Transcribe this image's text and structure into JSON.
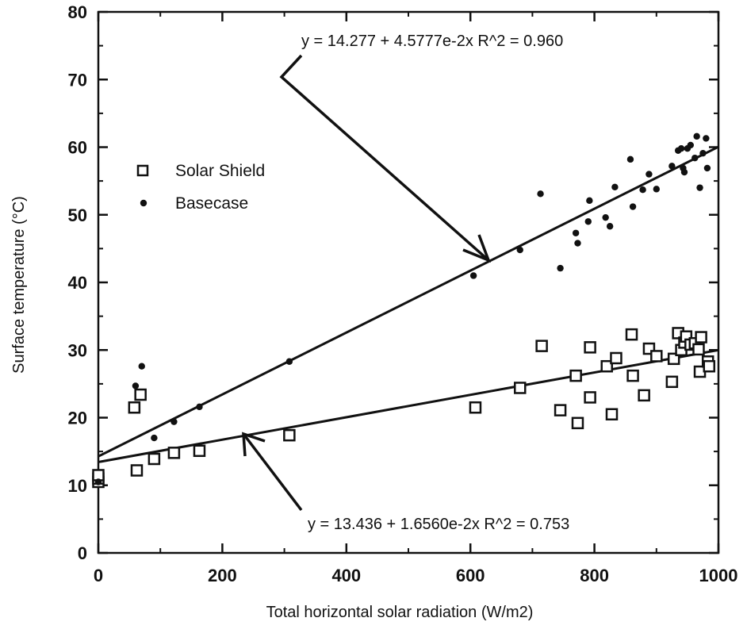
{
  "chart_data": {
    "type": "scatter",
    "xlabel": "Total horizontal solar radiation (W/m2)",
    "ylabel": "Surface temperature (°C)",
    "xlim": [
      0,
      1000
    ],
    "ylim": [
      0,
      80
    ],
    "xticks": [
      0,
      200,
      400,
      600,
      800,
      1000
    ],
    "yticks": [
      0,
      10,
      20,
      30,
      40,
      50,
      60,
      70,
      80
    ],
    "grid": false,
    "legend_position": "left-middle",
    "series": [
      {
        "name": "Solar Shield",
        "marker": "square-open",
        "points": [
          [
            0,
            10.5
          ],
          [
            0,
            11.0
          ],
          [
            0,
            11.5
          ],
          [
            58,
            21.5
          ],
          [
            62,
            12.2
          ],
          [
            68,
            23.4
          ],
          [
            90,
            13.9
          ],
          [
            122,
            14.8
          ],
          [
            163,
            15.1
          ],
          [
            308,
            17.4
          ],
          [
            608,
            21.5
          ],
          [
            680,
            24.4
          ],
          [
            715,
            30.6
          ],
          [
            745,
            21.1
          ],
          [
            770,
            26.2
          ],
          [
            773,
            19.2
          ],
          [
            793,
            23.0
          ],
          [
            793,
            30.4
          ],
          [
            820,
            27.6
          ],
          [
            828,
            20.5
          ],
          [
            835,
            28.8
          ],
          [
            860,
            32.3
          ],
          [
            862,
            26.2
          ],
          [
            880,
            23.3
          ],
          [
            888,
            30.2
          ],
          [
            900,
            29.1
          ],
          [
            925,
            25.3
          ],
          [
            928,
            28.7
          ],
          [
            935,
            32.5
          ],
          [
            940,
            30.0
          ],
          [
            945,
            31.1
          ],
          [
            948,
            32.0
          ],
          [
            955,
            30.8
          ],
          [
            962,
            31.0
          ],
          [
            968,
            30.1
          ],
          [
            970,
            26.8
          ],
          [
            972,
            31.9
          ],
          [
            983,
            28.3
          ],
          [
            985,
            27.6
          ]
        ]
      },
      {
        "name": "Basecase",
        "marker": "dot",
        "points": [
          [
            0,
            10.5
          ],
          [
            60,
            24.7
          ],
          [
            70,
            27.6
          ],
          [
            90,
            17.0
          ],
          [
            122,
            19.4
          ],
          [
            163,
            21.6
          ],
          [
            308,
            28.3
          ],
          [
            605,
            41.0
          ],
          [
            680,
            44.8
          ],
          [
            713,
            53.1
          ],
          [
            745,
            42.1
          ],
          [
            770,
            47.3
          ],
          [
            773,
            45.8
          ],
          [
            790,
            49.0
          ],
          [
            792,
            52.1
          ],
          [
            818,
            49.6
          ],
          [
            825,
            48.3
          ],
          [
            833,
            54.1
          ],
          [
            858,
            58.2
          ],
          [
            862,
            51.2
          ],
          [
            878,
            53.7
          ],
          [
            888,
            56.0
          ],
          [
            900,
            53.8
          ],
          [
            925,
            57.2
          ],
          [
            935,
            59.5
          ],
          [
            940,
            59.8
          ],
          [
            943,
            56.9
          ],
          [
            945,
            56.3
          ],
          [
            950,
            59.8
          ],
          [
            955,
            60.3
          ],
          [
            962,
            58.4
          ],
          [
            965,
            61.6
          ],
          [
            970,
            54.0
          ],
          [
            975,
            59.1
          ],
          [
            980,
            61.3
          ],
          [
            982,
            56.9
          ]
        ]
      }
    ],
    "fits": [
      {
        "series": "Basecase",
        "intercept": 14.277,
        "slope": 0.045777,
        "label": "y  =  14.277  +  4.5777e-2x      R^2  =  0.960"
      },
      {
        "series": "Solar Shield",
        "intercept": 13.436,
        "slope": 0.01656,
        "label": "y  =  13.436  +  1.6560e-2x      R^2  =  0.753"
      }
    ]
  }
}
